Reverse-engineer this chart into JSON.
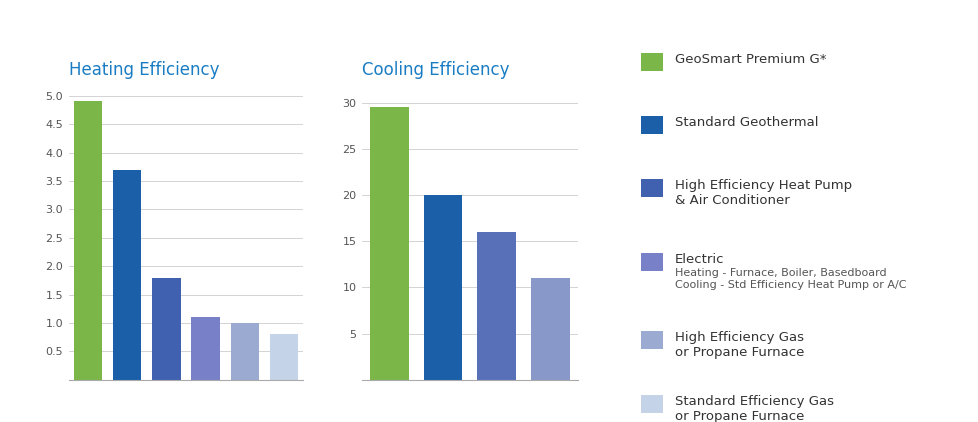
{
  "heating_values": [
    4.9,
    3.7,
    1.8,
    1.1,
    1.0,
    0.8
  ],
  "cooling_values": [
    29.5,
    20.0,
    16.0,
    11.0
  ],
  "heating_colors": [
    "#7ab648",
    "#1a5fa8",
    "#4060b0",
    "#7880c8",
    "#9aaad0",
    "#c5d3e8"
  ],
  "cooling_colors": [
    "#7ab648",
    "#1a5fa8",
    "#5870b8",
    "#8898c8"
  ],
  "heating_title": "Heating Efficiency",
  "cooling_title": "Cooling Efficiency",
  "title_color": "#1a7dc4",
  "heating_yticks": [
    0.5,
    1.0,
    1.5,
    2.0,
    2.5,
    3.0,
    3.5,
    4.0,
    4.5,
    5.0
  ],
  "heating_ylim": [
    0,
    5.2
  ],
  "cooling_yticks": [
    5,
    10,
    15,
    20,
    25,
    30
  ],
  "cooling_ylim": [
    0,
    32
  ],
  "legend_entries": [
    {
      "color": "#7ab648",
      "line1": "GeoSmart Premium G*",
      "line2": "",
      "line3": "",
      "line1_size": 9.5,
      "line2_size": 8.0,
      "line3_size": 8.0,
      "line2_color": "#555555",
      "line3_color": "#555555"
    },
    {
      "color": "#1a5fa8",
      "line1": "Standard Geothermal",
      "line2": "",
      "line3": "",
      "line1_size": 9.5,
      "line2_size": 8.0,
      "line3_size": 8.0,
      "line2_color": "#555555",
      "line3_color": "#555555"
    },
    {
      "color": "#4060b0",
      "line1": "High Efficiency Heat Pump",
      "line2": "& Air Conditioner",
      "line3": "",
      "line1_size": 9.5,
      "line2_size": 9.5,
      "line3_size": 8.0,
      "line2_color": "#333333",
      "line3_color": "#555555"
    },
    {
      "color": "#7880c8",
      "line1": "Electric",
      "line2": "Heating - Furnace, Boiler, Basedboard",
      "line3": "Cooling - Std Efficiency Heat Pump or A/C",
      "line1_size": 9.5,
      "line2_size": 8.0,
      "line3_size": 8.0,
      "line2_color": "#555555",
      "line3_color": "#555555"
    },
    {
      "color": "#9aaad0",
      "line1": "High Efficiency Gas",
      "line2": "or Propane Furnace",
      "line3": "",
      "line1_size": 9.5,
      "line2_size": 9.5,
      "line3_size": 8.0,
      "line2_color": "#333333",
      "line3_color": "#555555"
    },
    {
      "color": "#c5d3e8",
      "line1": "Standard Efficiency Gas",
      "line2": "or Propane Furnace",
      "line3": "",
      "line1_size": 9.5,
      "line2_size": 9.5,
      "line3_size": 8.0,
      "line2_color": "#333333",
      "line3_color": "#555555"
    }
  ],
  "bg_color": "#ffffff",
  "grid_color": "#cccccc",
  "axis_color": "#aaaaaa",
  "tick_color": "#555555"
}
